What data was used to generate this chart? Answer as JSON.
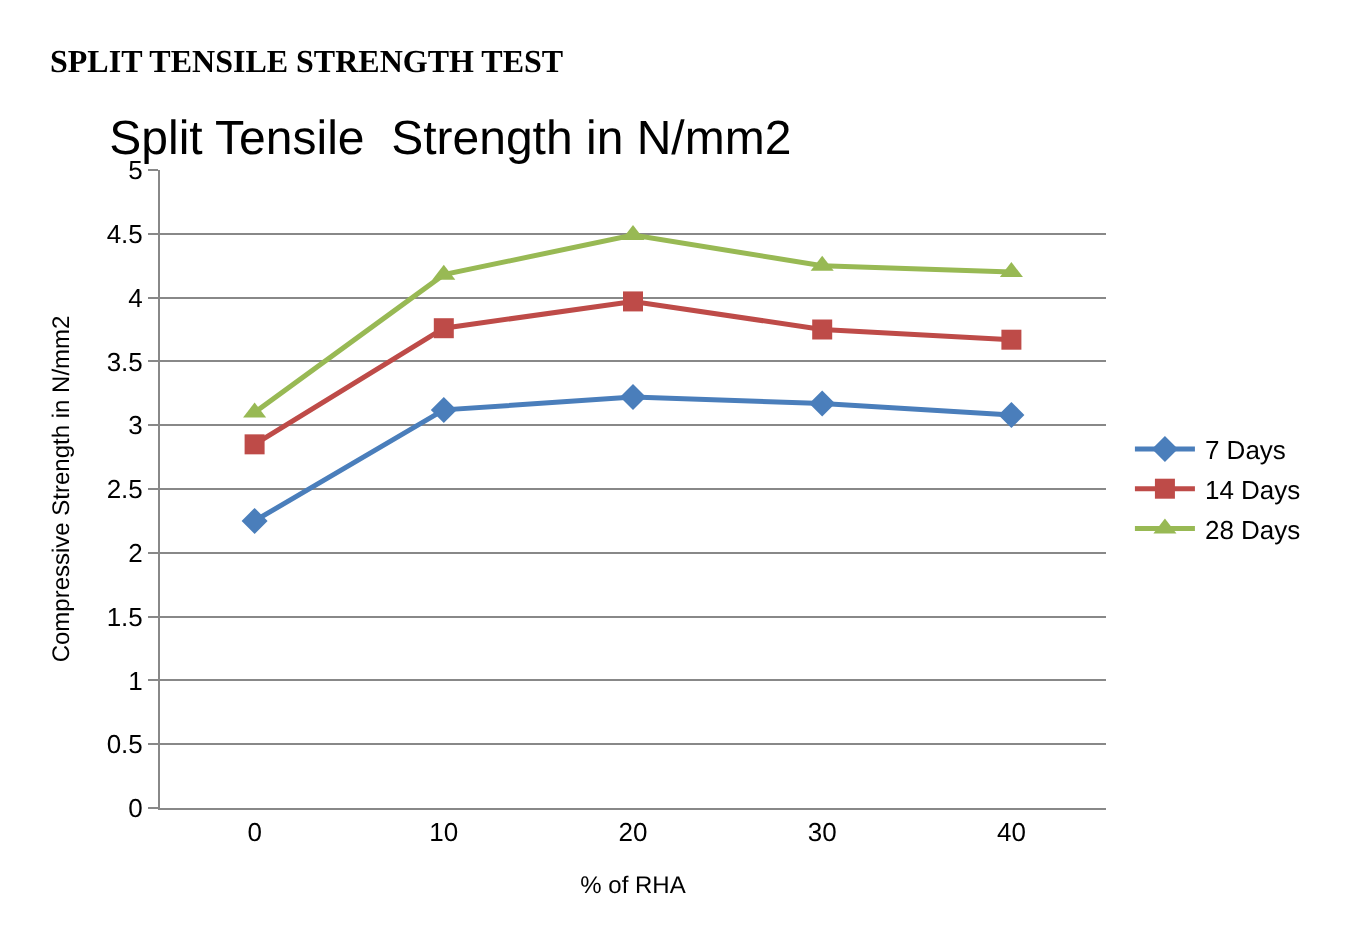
{
  "chart_data": {
    "type": "line",
    "title": "Split Tensile  Strength in N/mm2",
    "xlabel": "% of RHA",
    "ylabel": "Compressive Strength in N/mm2",
    "annotations": [
      "SPLIT TENSILE STRENGTH TEST"
    ],
    "categories": [
      "0",
      "10",
      "20",
      "30",
      "40"
    ],
    "series": [
      {
        "name": "7 Days",
        "color": "#4a7ebb",
        "marker": "diamond",
        "values": [
          2.25,
          3.12,
          3.22,
          3.17,
          3.08
        ]
      },
      {
        "name": "14 Days",
        "color": "#be4b48",
        "marker": "square",
        "values": [
          2.85,
          3.76,
          3.97,
          3.75,
          3.67
        ]
      },
      {
        "name": "28 Days",
        "color": "#98b954",
        "marker": "triangle",
        "values": [
          3.1,
          4.18,
          4.49,
          4.25,
          4.2
        ]
      }
    ],
    "ylim": [
      0,
      5
    ],
    "yticks": [
      0,
      0.5,
      1,
      1.5,
      2,
      2.5,
      3,
      3.5,
      4,
      4.5,
      5
    ],
    "grid": "y",
    "legend": "right",
    "line_style": "solid"
  }
}
